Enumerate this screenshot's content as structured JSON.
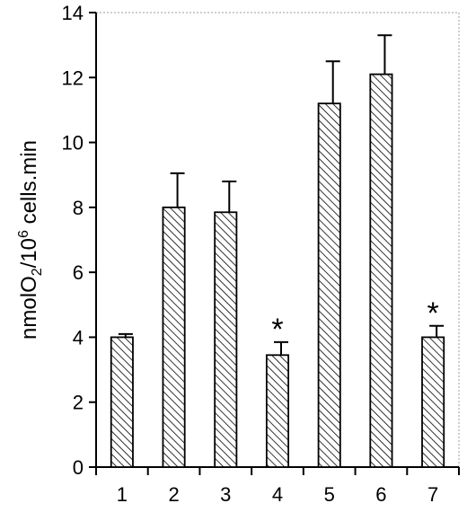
{
  "chart_data": {
    "type": "bar",
    "title": "",
    "xlabel": "",
    "ylabel": {
      "part1": "nmolO",
      "sub": "2",
      "part2": "/10",
      "sup": "6",
      "part3": " cells.min"
    },
    "categories": [
      "1",
      "2",
      "3",
      "4",
      "5",
      "6",
      "7"
    ],
    "values": [
      4.0,
      8.0,
      7.85,
      3.45,
      11.2,
      12.1,
      4.0
    ],
    "errors": [
      0.1,
      1.05,
      0.95,
      0.4,
      1.3,
      1.2,
      0.35
    ],
    "significance": [
      "",
      "",
      "",
      "*",
      "",
      "",
      "*"
    ],
    "ylim": [
      0,
      14
    ],
    "yticks": [
      "0",
      "2",
      "4",
      "6",
      "8",
      "10",
      "12",
      "14"
    ],
    "bar_fill": "hatched",
    "grid": false,
    "colors": {
      "bar_stroke": "#000000",
      "hatch": "#000000",
      "frame": "#bdbdbd",
      "background": "#ffffff"
    }
  }
}
